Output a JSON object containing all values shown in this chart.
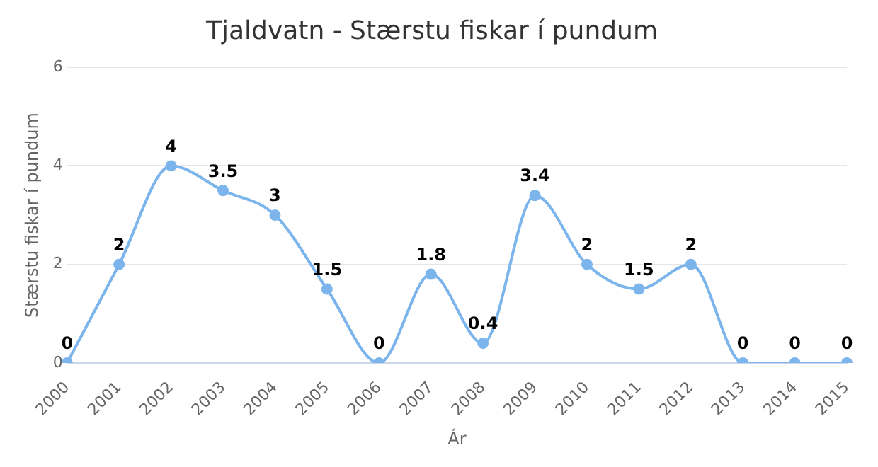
{
  "chart_data": {
    "type": "line",
    "title": "Tjaldvatn - Stærstu fiskar í pundum",
    "xlabel": "Ár",
    "ylabel": "Stærstu fiskar í pundum",
    "categories": [
      "2000",
      "2001",
      "2002",
      "2003",
      "2004",
      "2005",
      "2006",
      "2007",
      "2008",
      "2009",
      "2010",
      "2011",
      "2012",
      "2013",
      "2014",
      "2015"
    ],
    "series": [
      {
        "color": "#7cb5ec",
        "values": [
          0,
          2,
          4,
          3.5,
          3,
          1.5,
          0,
          1.8,
          0.4,
          3.4,
          2,
          1.5,
          2,
          0,
          0,
          0
        ]
      }
    ],
    "ylim": [
      0,
      6
    ],
    "yticks": [
      0,
      2,
      4,
      6
    ],
    "grid": "y",
    "legend": false,
    "marker": "circle",
    "line_style": "solid",
    "data_labels": true
  }
}
